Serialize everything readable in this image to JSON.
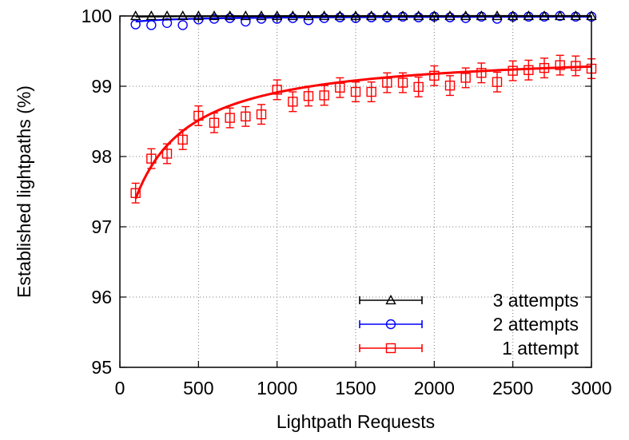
{
  "chart_data": {
    "type": "line",
    "title": "",
    "xlabel": "Lightpath Requests",
    "ylabel": "Established lightpaths (%)",
    "xlim": [
      0,
      3000
    ],
    "ylim": [
      95,
      100
    ],
    "x_ticks": [
      "0",
      "500",
      "1000",
      "1500",
      "2000",
      "2500",
      "3000"
    ],
    "y_ticks": [
      "95",
      "96",
      "97",
      "98",
      "99",
      "100"
    ],
    "grid": true,
    "legend_position": "bottom-right",
    "x": [
      100,
      200,
      300,
      400,
      500,
      600,
      700,
      800,
      900,
      1000,
      1100,
      1200,
      1300,
      1400,
      1500,
      1600,
      1700,
      1800,
      1900,
      2000,
      2100,
      2200,
      2300,
      2400,
      2500,
      2600,
      2700,
      2800,
      2900,
      3000
    ],
    "series": [
      {
        "name": "3 attempts",
        "color": "#000000",
        "marker": "triangle",
        "values": [
          100.0,
          100.0,
          100.0,
          100.0,
          100.0,
          100.0,
          100.0,
          100.0,
          100.0,
          100.0,
          100.0,
          100.0,
          100.0,
          100.0,
          100.0,
          100.0,
          100.0,
          100.0,
          100.0,
          100.0,
          100.0,
          100.0,
          100.0,
          100.0,
          100.0,
          100.0,
          100.0,
          100.0,
          100.0,
          100.0
        ],
        "error": 0.01,
        "fit": [
          99.99,
          100.0
        ]
      },
      {
        "name": "2 attempts",
        "color": "#0000ff",
        "marker": "circle",
        "values": [
          99.88,
          99.87,
          99.9,
          99.87,
          99.95,
          99.96,
          99.97,
          99.92,
          99.96,
          99.96,
          99.97,
          99.94,
          99.97,
          99.98,
          99.97,
          99.98,
          99.98,
          99.99,
          99.98,
          99.99,
          99.98,
          99.97,
          99.99,
          99.96,
          99.99,
          99.99,
          99.99,
          100.0,
          99.99,
          99.99
        ],
        "error": 0.04,
        "fit": [
          99.92,
          99.99
        ]
      },
      {
        "name": "1 attempt",
        "color": "#ff0000",
        "marker": "square",
        "values": [
          97.48,
          97.97,
          98.04,
          98.24,
          98.58,
          98.48,
          98.55,
          98.57,
          98.6,
          98.95,
          98.78,
          98.86,
          98.87,
          98.98,
          98.92,
          98.92,
          99.05,
          99.05,
          98.99,
          99.15,
          99.01,
          99.12,
          99.19,
          99.06,
          99.22,
          99.23,
          99.26,
          99.3,
          99.29,
          99.25
        ],
        "error": 0.14,
        "fit": [
          97.4,
          99.28
        ]
      }
    ]
  }
}
